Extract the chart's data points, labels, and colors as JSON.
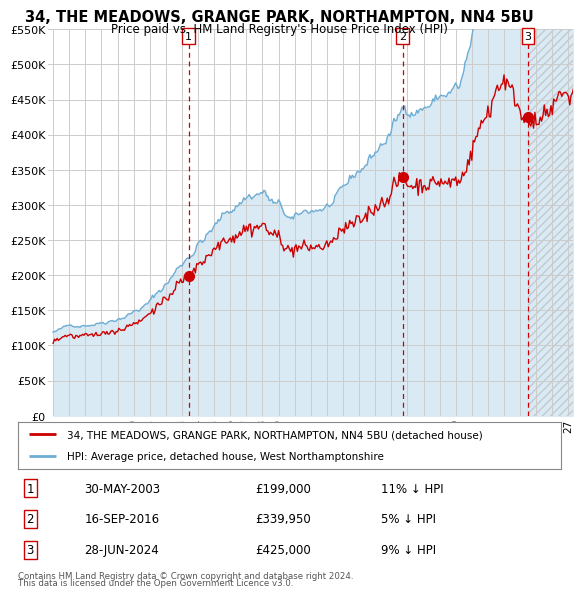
{
  "title": "34, THE MEADOWS, GRANGE PARK, NORTHAMPTON, NN4 5BU",
  "subtitle": "Price paid vs. HM Land Registry's House Price Index (HPI)",
  "legend_line1": "34, THE MEADOWS, GRANGE PARK, NORTHAMPTON, NN4 5BU (detached house)",
  "legend_line2": "HPI: Average price, detached house, West Northamptonshire",
  "footer1": "Contains HM Land Registry data © Crown copyright and database right 2024.",
  "footer2": "This data is licensed under the Open Government Licence v3.0.",
  "transactions": [
    {
      "num": "1",
      "date": "30-MAY-2003",
      "price": "£199,000",
      "hpi": "11% ↓ HPI"
    },
    {
      "num": "2",
      "date": "16-SEP-2016",
      "price": "£339,950",
      "hpi": "5% ↓ HPI"
    },
    {
      "num": "3",
      "date": "28-JUN-2024",
      "price": "£425,000",
      "hpi": "9% ↓ HPI"
    }
  ],
  "sale_years": [
    2003.41,
    2016.71,
    2024.49
  ],
  "sale_prices": [
    199000,
    339950,
    425000
  ],
  "ylim": [
    0,
    550000
  ],
  "yticks": [
    0,
    50000,
    100000,
    150000,
    200000,
    250000,
    300000,
    350000,
    400000,
    450000,
    500000,
    550000
  ],
  "hpi_color": "#6eadd4",
  "hpi_fill_color": "#daeaf5",
  "sale_color": "#cc0000",
  "vline_color": "#cc0000",
  "background_color": "#ffffff",
  "plot_bg_color": "#ffffff",
  "grid_color": "#cccccc",
  "hatch_color": "#aaaaaa"
}
